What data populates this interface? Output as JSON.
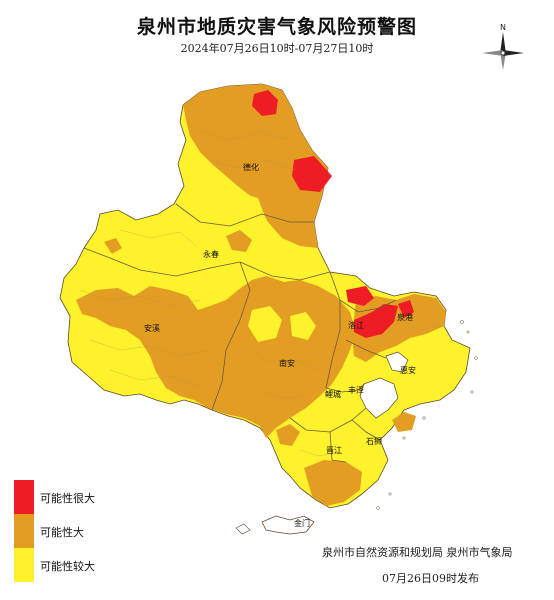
{
  "header": {
    "title": "泉州市地质灾害气象风险预警图",
    "subtitle": "2024年07月26日10时-07月27日10时"
  },
  "compass": {
    "north_label": "N",
    "icon": "north-arrow-icon"
  },
  "map": {
    "labels": {
      "dehua": "德化",
      "yongchun": "永春",
      "anxi": "安溪",
      "nanan": "南安",
      "luojiang": "洛江",
      "quangang": "泉港",
      "huian": "惠安",
      "licheng": "鲤城",
      "fengze": "丰泽",
      "shishi": "石狮",
      "jinjiang": "晋江",
      "jinmen": "金门"
    },
    "colors": {
      "very_high": "#ee1c24",
      "high": "#e39d22",
      "fairly_high": "#fdf22b",
      "boundary": "#5a4a30",
      "sea": "#ffffff"
    }
  },
  "legend": {
    "items": [
      {
        "label": "可能性很大",
        "color": "#ee1c24"
      },
      {
        "label": "可能性大",
        "color": "#e39d22"
      },
      {
        "label": "可能性较大",
        "color": "#fdf22b"
      }
    ]
  },
  "footer": {
    "publisher": "泉州市自然资源和规划局  泉州市气象局",
    "issued": "07月26日09时发布"
  }
}
